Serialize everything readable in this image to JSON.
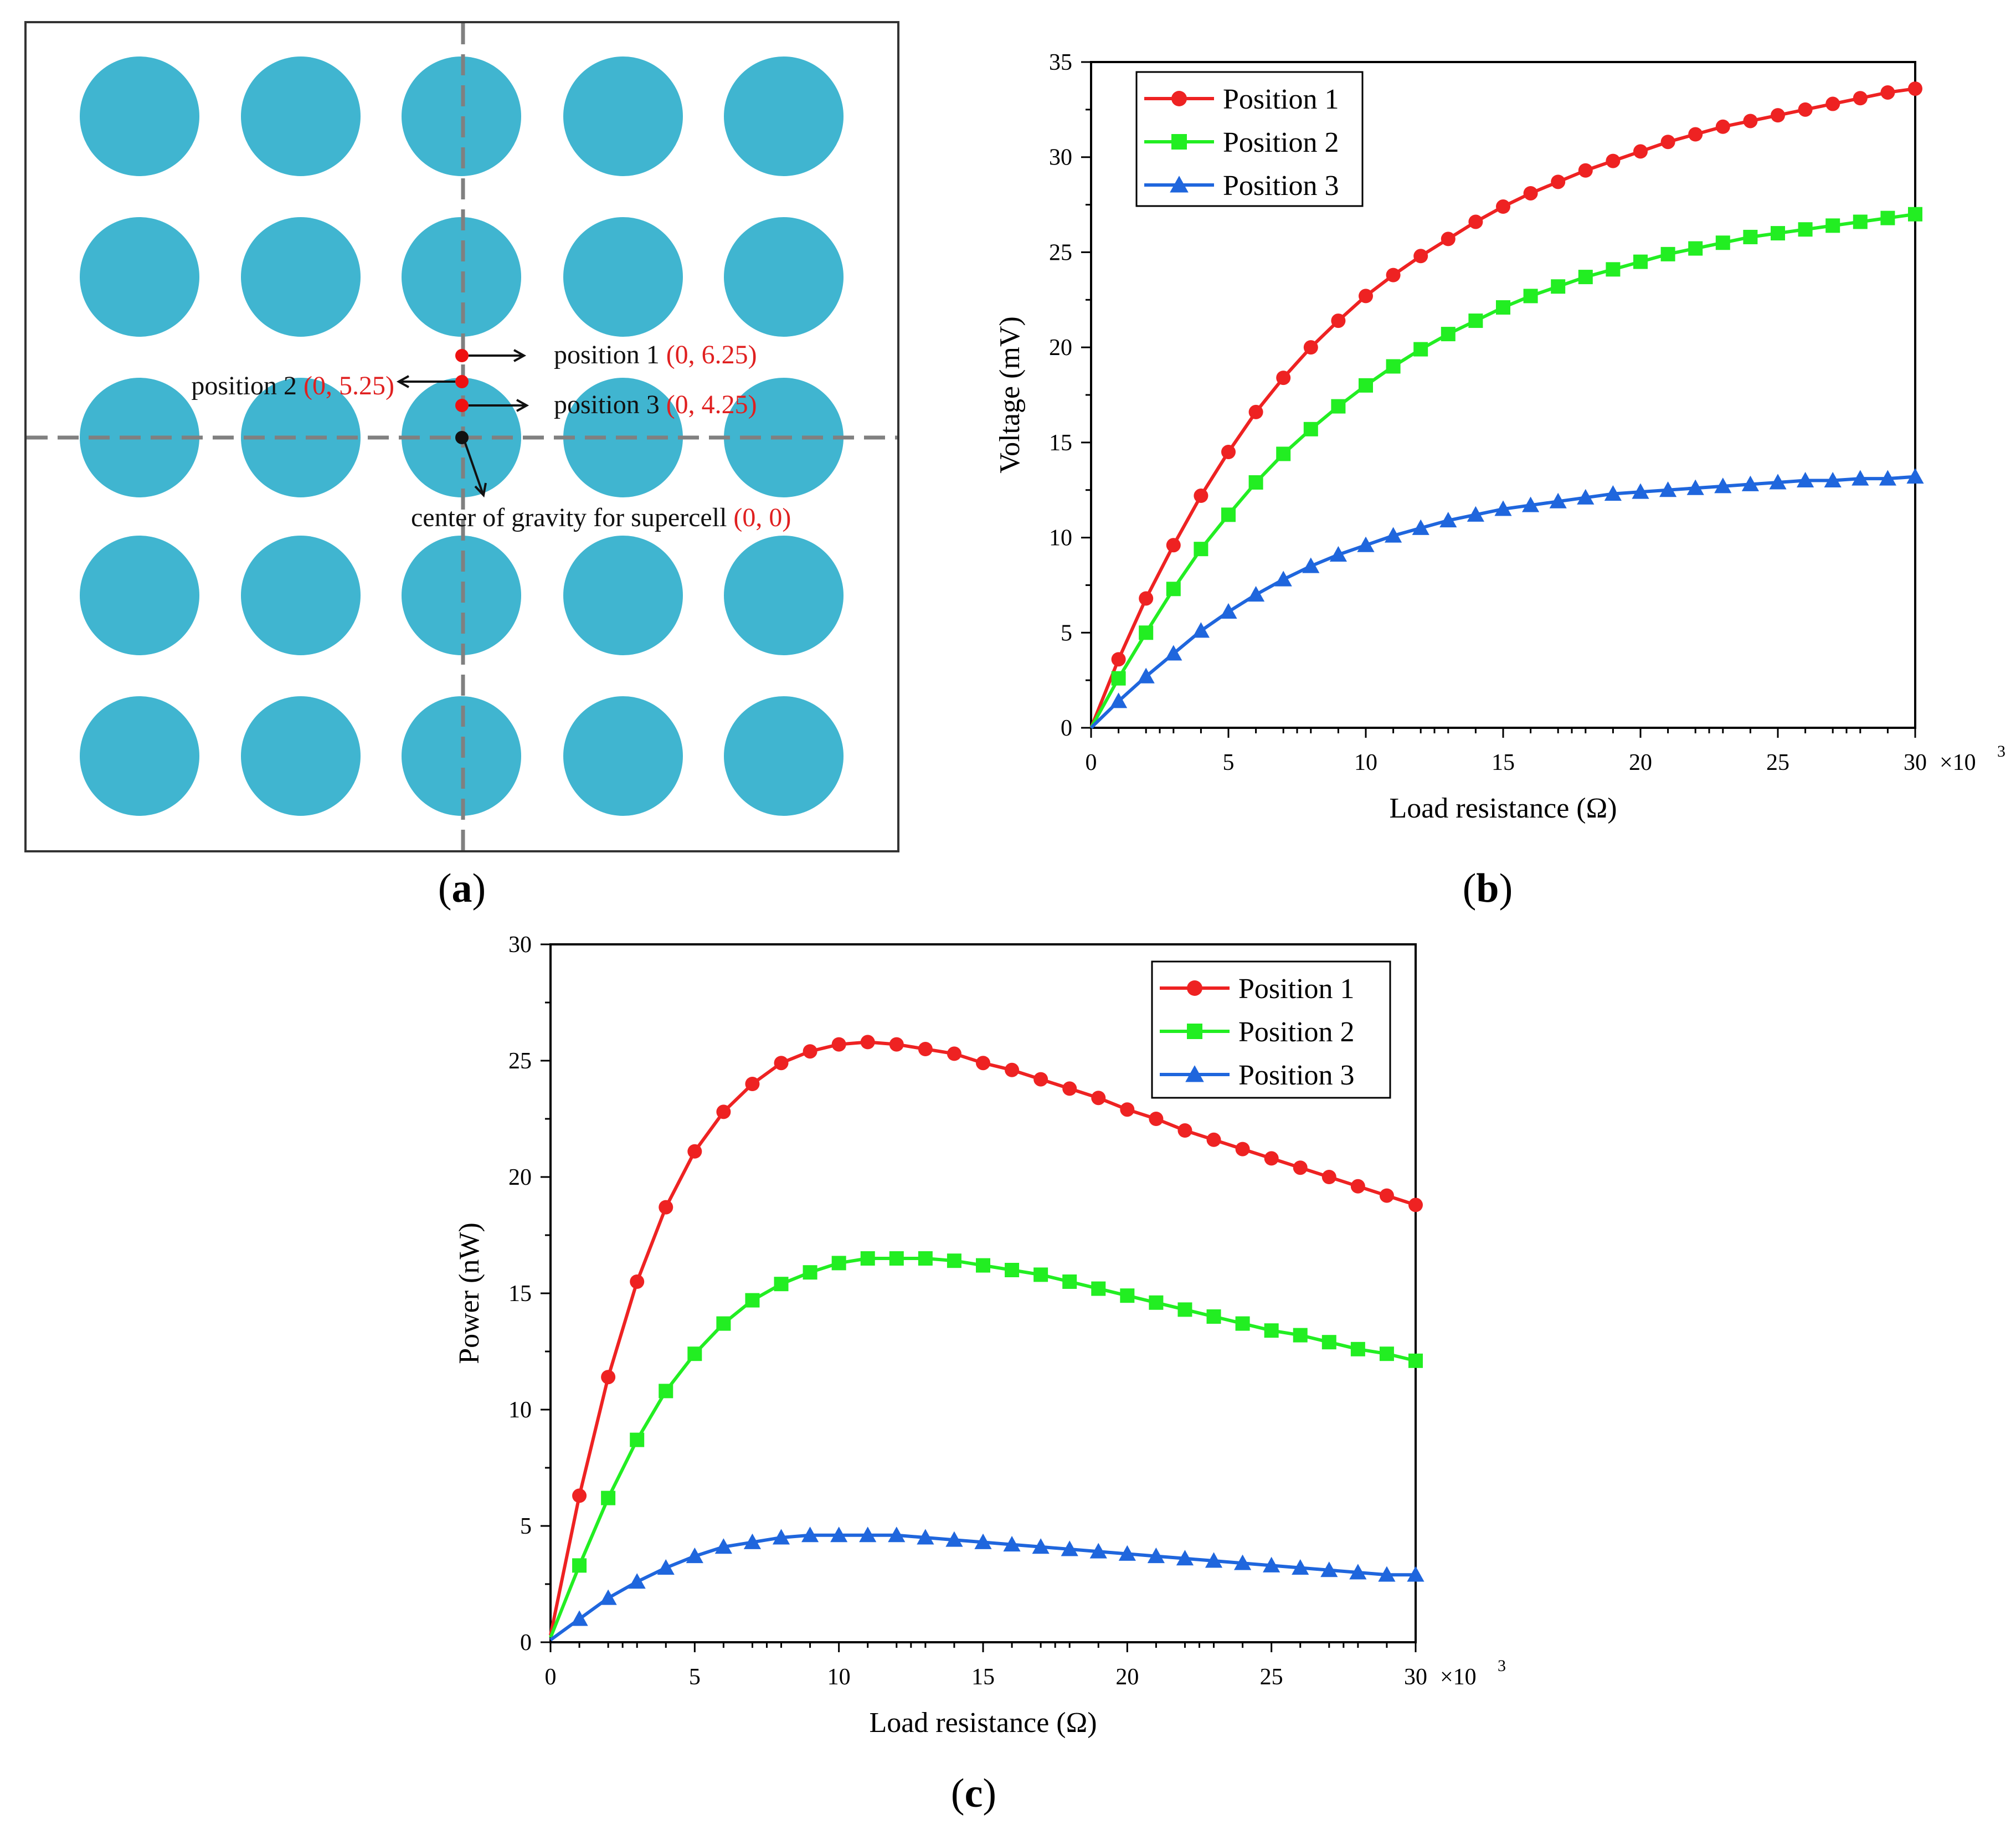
{
  "colors": {
    "circle": "#40B5D0",
    "guide": "#808080",
    "marker": "#EE1111",
    "origin": "#111111",
    "annotation_red": "#E02020",
    "series": [
      "#EE2222",
      "#22EE22",
      "#1F66DD"
    ]
  },
  "panel_a": {
    "caption": "a",
    "position1": {
      "label": "position 1 ",
      "coord": "(0, 6.25)"
    },
    "position2": {
      "label": "position 2 ",
      "coord": "(0, 5.25)"
    },
    "position3": {
      "label": "position 3 ",
      "coord": "(0, 4.25)"
    },
    "center": {
      "label": "center of gravity for supercell ",
      "coord": "(0, 0)"
    }
  },
  "chart_data": [
    {
      "id": "b",
      "caption": "b",
      "type": "line",
      "xlabel": "Load resistance (Ω)",
      "ylabel": "Voltage (mV)",
      "x_multiplier": "×10",
      "x_multiplier_exp": "3",
      "xlim": [
        0,
        30
      ],
      "ylim": [
        0,
        35
      ],
      "xticks": [
        0,
        5,
        10,
        15,
        20,
        25,
        30
      ],
      "xtick_labels": [
        "0",
        "5",
        "10",
        "15",
        "20",
        "25",
        "30"
      ],
      "yticks": [
        0,
        5,
        10,
        15,
        20,
        25,
        30,
        35
      ],
      "ytick_labels": [
        "0",
        "5",
        "10",
        "15",
        "20",
        "25",
        "30",
        "35"
      ],
      "legend_position": "top-left",
      "x": [
        0,
        1,
        2,
        3,
        4,
        5,
        6,
        7,
        8,
        9,
        10,
        11,
        12,
        13,
        14,
        15,
        16,
        17,
        18,
        19,
        20,
        21,
        22,
        23,
        24,
        25,
        26,
        27,
        28,
        29,
        30
      ],
      "series": [
        {
          "name": "Position 1",
          "marker": "circle",
          "values": [
            0,
            3.6,
            6.8,
            9.6,
            12.2,
            14.5,
            16.6,
            18.4,
            20.0,
            21.4,
            22.7,
            23.8,
            24.8,
            25.7,
            26.6,
            27.4,
            28.1,
            28.7,
            29.3,
            29.8,
            30.3,
            30.8,
            31.2,
            31.6,
            31.9,
            32.2,
            32.5,
            32.8,
            33.1,
            33.4,
            33.6
          ]
        },
        {
          "name": "Position 2",
          "marker": "square",
          "values": [
            0,
            2.6,
            5.0,
            7.3,
            9.4,
            11.2,
            12.9,
            14.4,
            15.7,
            16.9,
            18.0,
            19.0,
            19.9,
            20.7,
            21.4,
            22.1,
            22.7,
            23.2,
            23.7,
            24.1,
            24.5,
            24.9,
            25.2,
            25.5,
            25.8,
            26.0,
            26.2,
            26.4,
            26.6,
            26.8,
            27.0
          ]
        },
        {
          "name": "Position 3",
          "marker": "triangle",
          "values": [
            0,
            1.4,
            2.7,
            3.9,
            5.1,
            6.1,
            7.0,
            7.8,
            8.5,
            9.1,
            9.6,
            10.1,
            10.5,
            10.9,
            11.2,
            11.5,
            11.7,
            11.9,
            12.1,
            12.3,
            12.4,
            12.5,
            12.6,
            12.7,
            12.8,
            12.9,
            13.0,
            13.0,
            13.1,
            13.1,
            13.2
          ]
        }
      ]
    },
    {
      "id": "c",
      "caption": "c",
      "type": "line",
      "xlabel": "Load resistance (Ω)",
      "ylabel": "Power (nW)",
      "x_multiplier": "×10",
      "x_multiplier_exp": "3",
      "xlim": [
        0,
        30
      ],
      "ylim": [
        0,
        30
      ],
      "xticks": [
        0,
        5,
        10,
        15,
        20,
        25,
        30
      ],
      "xtick_labels": [
        "0",
        "5",
        "10",
        "15",
        "20",
        "25",
        "30"
      ],
      "yticks": [
        0,
        5,
        10,
        15,
        20,
        25,
        30
      ],
      "ytick_labels": [
        "0",
        "5",
        "10",
        "15",
        "20",
        "25",
        "30"
      ],
      "legend_position": "top-right",
      "x": [
        0,
        1,
        2,
        3,
        4,
        5,
        6,
        7,
        8,
        9,
        10,
        11,
        12,
        13,
        14,
        15,
        16,
        17,
        18,
        19,
        20,
        21,
        22,
        23,
        24,
        25,
        26,
        27,
        28,
        29,
        30
      ],
      "series": [
        {
          "name": "Position 1",
          "marker": "circle",
          "values": [
            0.3,
            6.3,
            11.4,
            15.5,
            18.7,
            21.1,
            22.8,
            24.0,
            24.9,
            25.4,
            25.7,
            25.8,
            25.7,
            25.5,
            25.3,
            24.9,
            24.6,
            24.2,
            23.8,
            23.4,
            22.9,
            22.5,
            22.0,
            21.6,
            21.2,
            20.8,
            20.4,
            20.0,
            19.6,
            19.2,
            18.8
          ]
        },
        {
          "name": "Position 2",
          "marker": "square",
          "values": [
            0.2,
            3.3,
            6.2,
            8.7,
            10.8,
            12.4,
            13.7,
            14.7,
            15.4,
            15.9,
            16.3,
            16.5,
            16.5,
            16.5,
            16.4,
            16.2,
            16.0,
            15.8,
            15.5,
            15.2,
            14.9,
            14.6,
            14.3,
            14.0,
            13.7,
            13.4,
            13.2,
            12.9,
            12.6,
            12.4,
            12.1
          ]
        },
        {
          "name": "Position 3",
          "marker": "triangle",
          "values": [
            0.1,
            1.0,
            1.9,
            2.6,
            3.2,
            3.7,
            4.1,
            4.3,
            4.5,
            4.6,
            4.6,
            4.6,
            4.6,
            4.5,
            4.4,
            4.3,
            4.2,
            4.1,
            4.0,
            3.9,
            3.8,
            3.7,
            3.6,
            3.5,
            3.4,
            3.3,
            3.2,
            3.1,
            3.0,
            2.9,
            2.9
          ]
        }
      ]
    }
  ]
}
